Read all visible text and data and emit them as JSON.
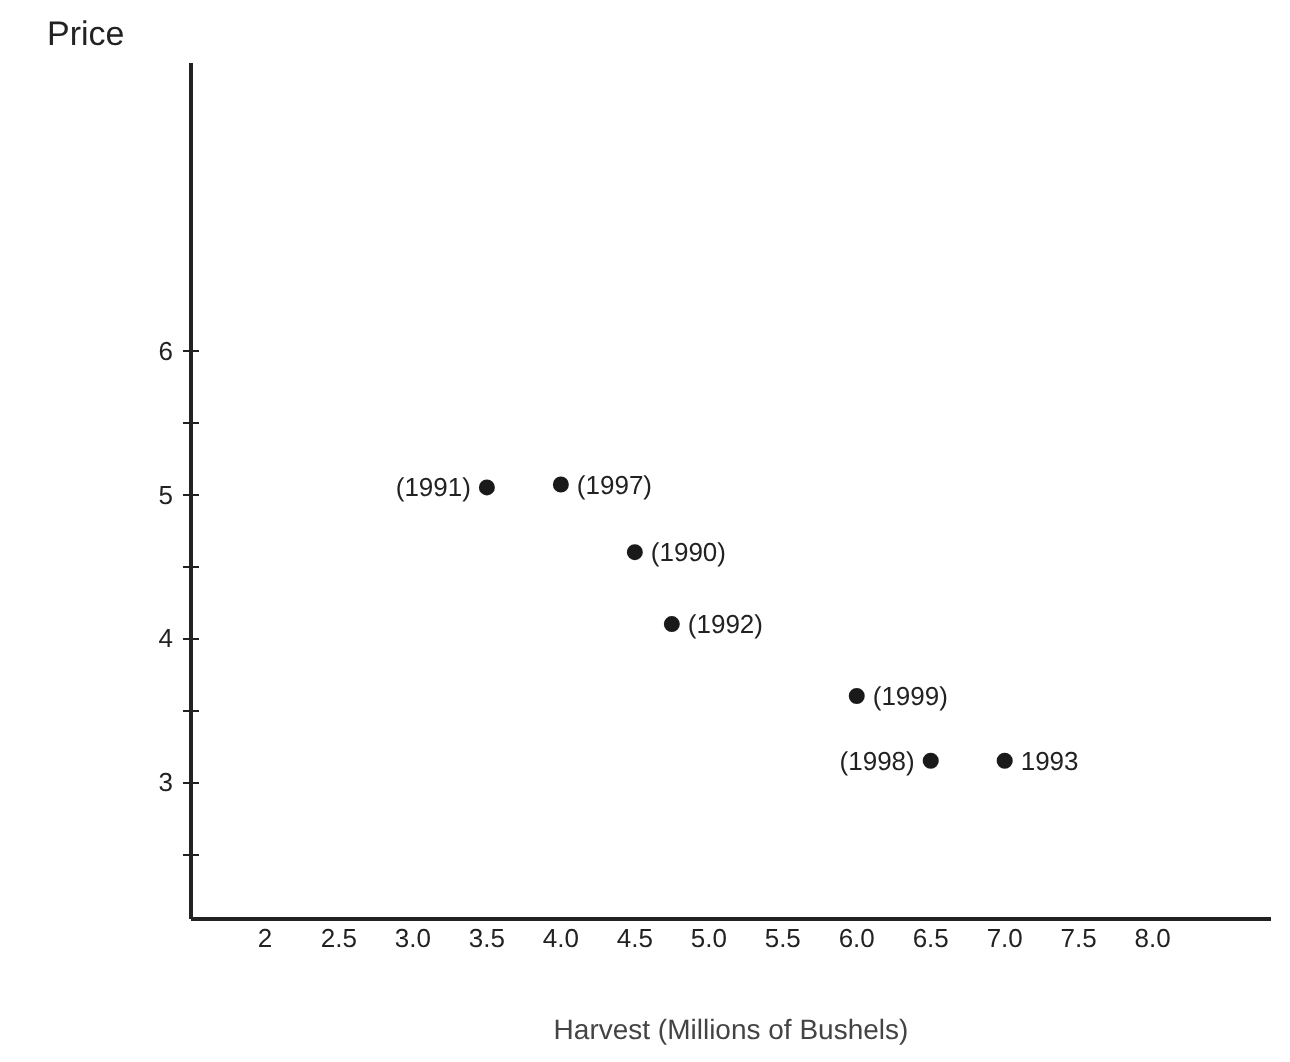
{
  "chart_data": {
    "type": "scatter",
    "ylabel": "Price",
    "xlabel": "Harvest (Millions of Bushels)",
    "x": [
      3.5,
      4.0,
      4.5,
      4.75,
      6.0,
      6.5,
      7.0
    ],
    "values": [
      5.05,
      5.07,
      4.6,
      4.1,
      3.6,
      3.15,
      3.15
    ],
    "color": "#1a1a1a",
    "marker": "circle",
    "grid": false,
    "annotations": [
      {
        "text": "(1991)",
        "x": 3.5,
        "y": 5.05
      },
      {
        "text": "(1997)",
        "x": 4.0,
        "y": 5.07
      },
      {
        "text": "(1990)",
        "x": 4.5,
        "y": 4.6
      },
      {
        "text": "(1992)",
        "x": 4.75,
        "y": 4.1
      },
      {
        "text": "(1999)",
        "x": 6.0,
        "y": 3.6
      },
      {
        "text": "(1998)",
        "x": 6.5,
        "y": 3.15
      },
      {
        "text": "1993",
        "x": 7.0,
        "y": 3.15
      }
    ],
    "xlim": [
      1.5,
      8.8
    ],
    "ylim": [
      2.05,
      8.0
    ],
    "xticks": [
      2,
      2.5,
      {
        "value": 3,
        "label": "3.0"
      },
      3.5,
      {
        "value": 4,
        "label": "4.0"
      },
      4.5,
      {
        "value": 5,
        "label": "5.0"
      },
      5.5,
      {
        "value": 6,
        "label": "6.0"
      },
      6.5,
      {
        "value": 7,
        "label": "7.0"
      },
      7.5,
      {
        "value": 8,
        "label": "8.0"
      }
    ],
    "yticks": [
      {
        "value": 2.5,
        "label": null
      },
      3,
      {
        "value": 3.5,
        "label": null
      },
      4,
      {
        "value": 4.5,
        "label": null
      },
      5,
      {
        "value": 5.5,
        "label": null
      },
      6
    ]
  }
}
